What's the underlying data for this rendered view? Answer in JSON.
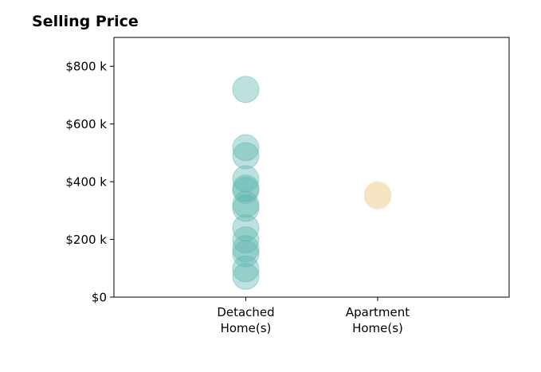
{
  "chart_data": {
    "type": "scatter",
    "title": "Selling Price",
    "xlabel": "",
    "ylabel": "",
    "categories": [
      "Detached\nHome(s)",
      "Apartment\nHome(s)"
    ],
    "ylim": [
      0,
      900000
    ],
    "yticks": [
      0,
      200000,
      400000,
      600000,
      800000
    ],
    "ytick_labels": [
      "$0",
      "$200 k",
      "$400 k",
      "$600 k",
      "$800 k"
    ],
    "grid": false,
    "legend": "none",
    "series": [
      {
        "category": "Detached\nHome(s)",
        "color": "#5ab4ac",
        "values": [
          720000,
          518000,
          490000,
          410000,
          378000,
          370000,
          322000,
          308000,
          240000,
          198000,
          168000,
          150000,
          98000,
          72000
        ]
      },
      {
        "category": "Apartment\nHome(s)",
        "color": "#f0d8a0",
        "values": [
          355000,
          350000
        ]
      }
    ]
  }
}
